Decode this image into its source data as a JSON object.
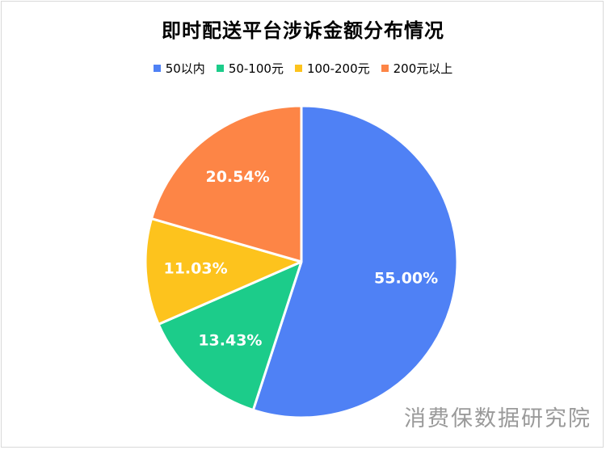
{
  "chart_data": {
    "type": "pie",
    "title": "即时配送平台涉诉金额分布情况",
    "categories": [
      "50以内",
      "50-100元",
      "100-200元",
      "200元以上"
    ],
    "values": [
      55.0,
      13.43,
      11.03,
      20.54
    ],
    "labels": [
      "55.00%",
      "13.43%",
      "11.03%",
      "20.54%"
    ],
    "colors": [
      "#4f81f5",
      "#1ccc8a",
      "#fdc31d",
      "#fd8546"
    ],
    "legend_position": "top",
    "start_angle_deg": 0,
    "direction": "clockwise"
  },
  "watermark": "消费保数据研究院"
}
